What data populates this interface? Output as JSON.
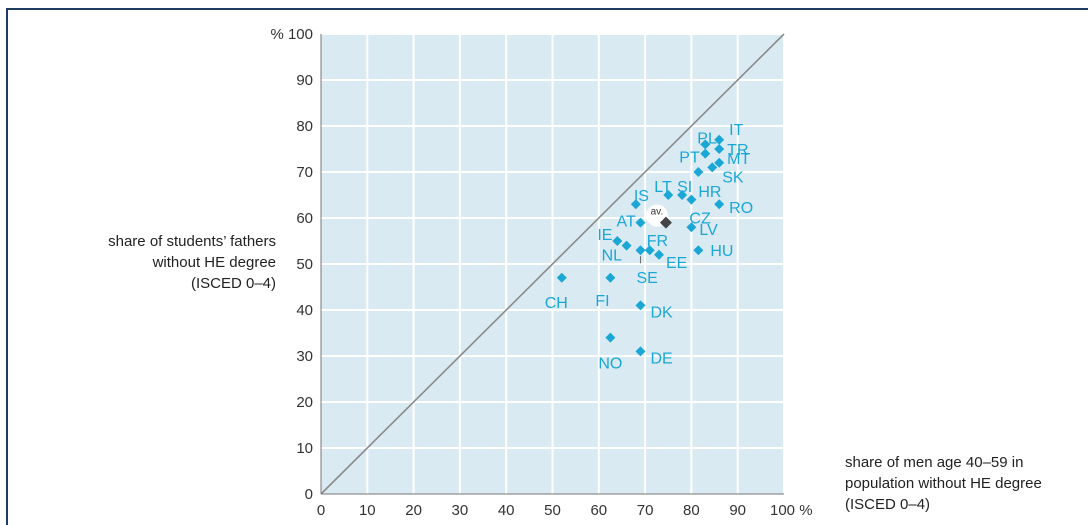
{
  "chart_data": {
    "type": "scatter",
    "title": "",
    "xlabel_lines": [
      "share of men age 40–59 in",
      "population without HE degree",
      "(ISCED 0–4)"
    ],
    "ylabel_lines": [
      "share of students’ fathers",
      "without HE degree",
      "(ISCED 0–4)"
    ],
    "xlim": [
      0,
      100
    ],
    "ylim": [
      0,
      100
    ],
    "x_ticks": [
      "0",
      "10",
      "20",
      "30",
      "40",
      "50",
      "60",
      "70",
      "80",
      "90",
      "100 %"
    ],
    "y_ticks": [
      "0",
      "10",
      "20",
      "30",
      "40",
      "50",
      "60",
      "70",
      "80",
      "90",
      "% 100"
    ],
    "grid": true,
    "reference_line": "diagonal y = x",
    "colors": {
      "background": "#daeaf3",
      "grid": "#ffffff",
      "points": "#1aa7d6",
      "average": "#444444",
      "diagonal": "#8a8a8a"
    },
    "points": [
      {
        "label": "IT",
        "x": 86,
        "y": 77
      },
      {
        "label": "PL",
        "x": 83,
        "y": 76
      },
      {
        "label": "TR",
        "x": 86,
        "y": 75
      },
      {
        "label": "PT",
        "x": 83,
        "y": 74
      },
      {
        "label": "MT",
        "x": 86,
        "y": 72
      },
      {
        "label": "SK",
        "x": 84.5,
        "y": 71
      },
      {
        "label": "HR",
        "x": 81.5,
        "y": 70
      },
      {
        "label": "LT",
        "x": 75,
        "y": 65
      },
      {
        "label": "SI",
        "x": 78,
        "y": 65
      },
      {
        "label": "IS",
        "x": 68,
        "y": 63
      },
      {
        "label": "CZ",
        "x": 80,
        "y": 64
      },
      {
        "label": "RO",
        "x": 86,
        "y": 63
      },
      {
        "label": "AT",
        "x": 69,
        "y": 59
      },
      {
        "label": "LV",
        "x": 80,
        "y": 58
      },
      {
        "label": "IE",
        "x": 64,
        "y": 55
      },
      {
        "label": "FR",
        "x": 71,
        "y": 53
      },
      {
        "label": "NL",
        "x": 66,
        "y": 54
      },
      {
        "label": "SE",
        "x": 69,
        "y": 53
      },
      {
        "label": "EE",
        "x": 73,
        "y": 52
      },
      {
        "label": "HU",
        "x": 81.5,
        "y": 53
      },
      {
        "label": "CH",
        "x": 52,
        "y": 47
      },
      {
        "label": "FI",
        "x": 62.5,
        "y": 47
      },
      {
        "label": "DK",
        "x": 69,
        "y": 41
      },
      {
        "label": "NO",
        "x": 62.5,
        "y": 34
      },
      {
        "label": "DE",
        "x": 69,
        "y": 31
      }
    ],
    "average": {
      "label": "av.",
      "x": 74.5,
      "y": 59
    }
  }
}
